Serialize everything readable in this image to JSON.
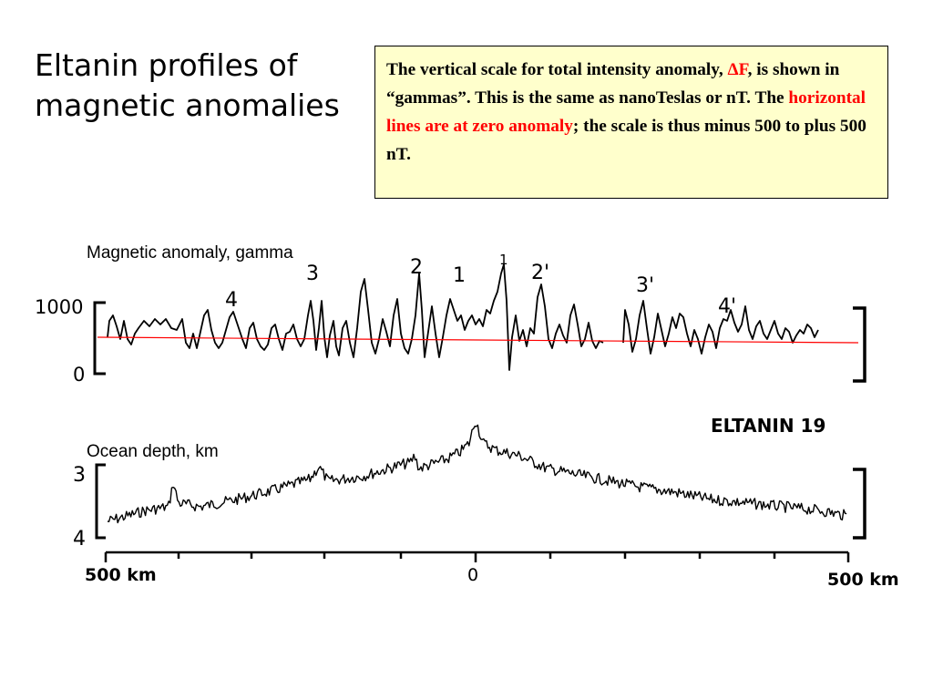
{
  "slide": {
    "title_lines": [
      "Eltanin profiles of",
      "magnetic anomalies"
    ],
    "note": {
      "p1": "The vertical scale for total intensity anomaly, ",
      "symbol": "ΔF",
      "p2": ", is shown in “gammas”. This is the same as nanoTeslas or nT. The ",
      "highlight": "horizontal lines are at zero anomaly",
      "p3": "; the scale is thus minus 500 to plus 500 nT."
    }
  },
  "chart_data": [
    {
      "type": "line",
      "ylabel": "Magnetic anomaly, gamma",
      "y_ticks": [
        "1000",
        "0"
      ],
      "ylim": [
        0,
        1000
      ],
      "zero_line": 500,
      "anomaly_labels": [
        "4",
        "3",
        "2",
        "1",
        "1",
        "2'",
        "3'",
        "4'"
      ],
      "series_color": "#000000",
      "zero_line_color": "#ff0000",
      "x_ticks": [
        "500 km",
        "0",
        "500 km"
      ],
      "xlim": [
        -500,
        500
      ]
    },
    {
      "type": "line",
      "ylabel": "Ocean depth, km",
      "y_ticks": [
        "3",
        "4"
      ],
      "ylim": [
        4,
        3
      ],
      "profile_label": "ELTANIN 19",
      "x_ticks": [
        "500 km",
        "0",
        "500 km"
      ],
      "xlim": [
        -500,
        500
      ]
    }
  ]
}
